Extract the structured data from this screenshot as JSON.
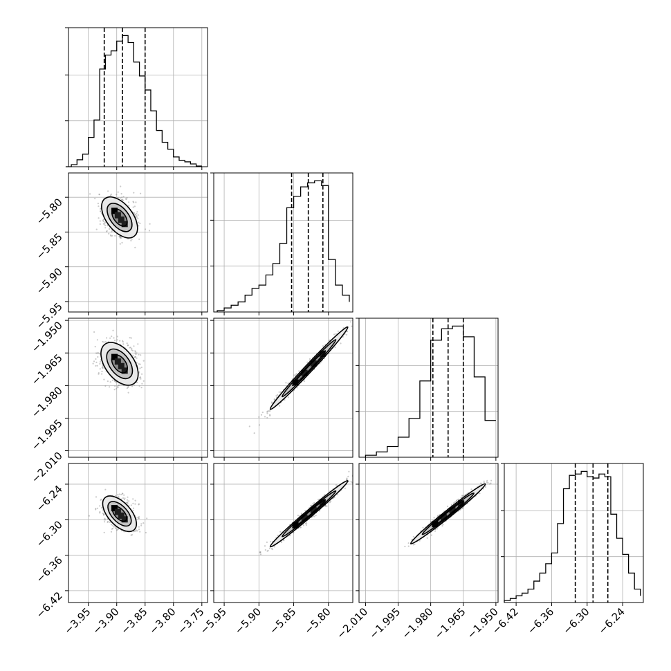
{
  "chart_data": {
    "type": "corner",
    "title": "",
    "parameters": [
      {
        "range": [
          -3.985,
          -3.74
        ],
        "ticks": [
          -3.95,
          -3.9,
          -3.85,
          -3.8,
          -3.75
        ],
        "tick_labels": [
          "−3.95",
          "−3.90",
          "−3.85",
          "−3.80",
          "−3.75"
        ],
        "quantiles": [
          -3.922,
          -3.89,
          -3.85
        ],
        "hist": {
          "bin_edges": [
            -3.99,
            -3.98,
            -3.97,
            -3.96,
            -3.95,
            -3.94,
            -3.93,
            -3.92,
            -3.91,
            -3.9,
            -3.89,
            -3.88,
            -3.87,
            -3.86,
            -3.85,
            -3.84,
            -3.83,
            -3.82,
            -3.81,
            -3.8,
            -3.79,
            -3.78,
            -3.77,
            -3.76,
            -3.75
          ],
          "counts": [
            0,
            3,
            10,
            18,
            42,
            67,
            140,
            160,
            166,
            180,
            188,
            178,
            150,
            130,
            110,
            80,
            52,
            35,
            25,
            14,
            9,
            7,
            4,
            1
          ]
        }
      },
      {
        "range": [
          -5.965,
          -5.765
        ],
        "ticks": [
          -5.95,
          -5.9,
          -5.85,
          -5.8
        ],
        "tick_labels": [
          "−5.95",
          "−5.90",
          "−5.85",
          "−5.80"
        ],
        "quantiles": [
          -5.853,
          -5.829,
          -5.808
        ],
        "hist": {
          "bin_edges": [
            -5.96,
            -5.95,
            -5.94,
            -5.93,
            -5.92,
            -5.91,
            -5.9,
            -5.89,
            -5.88,
            -5.87,
            -5.86,
            -5.85,
            -5.84,
            -5.83,
            -5.82,
            -5.81,
            -5.8,
            -5.79,
            -5.78,
            -5.77
          ],
          "counts": [
            2,
            6,
            10,
            15,
            25,
            35,
            40,
            55,
            72,
            102,
            155,
            172,
            186,
            192,
            195,
            188,
            78,
            40,
            25,
            15
          ]
        }
      },
      {
        "range": [
          -2.013,
          -1.949
        ],
        "ticks": [
          -2.01,
          -1.995,
          -1.98,
          -1.965,
          -1.95
        ],
        "tick_labels": [
          "−2.010",
          "−1.995",
          "−1.980",
          "−1.965",
          "−1.950"
        ],
        "quantiles": [
          -1.979,
          -1.972,
          -1.965
        ],
        "hist": {
          "bin_edges": [
            -2.01,
            -2.005,
            -2.0,
            -1.995,
            -1.99,
            -1.985,
            -1.98,
            -1.975,
            -1.97,
            -1.965,
            -1.96,
            -1.955,
            -1.95
          ],
          "counts": [
            3,
            8,
            16,
            30,
            58,
            114,
            175,
            192,
            196,
            180,
            120,
            55
          ]
        }
      },
      {
        "range": [
          -6.44,
          -6.205
        ],
        "ticks": [
          -6.42,
          -6.36,
          -6.3,
          -6.24
        ],
        "tick_labels": [
          "−6.42",
          "−6.36",
          "−6.30",
          "−6.24"
        ],
        "quantiles": [
          -6.32,
          -6.29,
          -6.265
        ],
        "hist": {
          "bin_edges": [
            -6.44,
            -6.43,
            -6.42,
            -6.41,
            -6.4,
            -6.39,
            -6.38,
            -6.37,
            -6.36,
            -6.35,
            -6.34,
            -6.33,
            -6.32,
            -6.31,
            -6.3,
            -6.29,
            -6.28,
            -6.27,
            -6.26,
            -6.25,
            -6.24,
            -6.23,
            -6.22,
            -6.21
          ],
          "counts": [
            3,
            6,
            10,
            14,
            20,
            32,
            44,
            58,
            74,
            118,
            170,
            190,
            192,
            196,
            188,
            186,
            192,
            188,
            132,
            96,
            72,
            44,
            20,
            10
          ]
        }
      }
    ],
    "pairs": [
      {
        "row": 1,
        "col": 0,
        "slope": -1.05,
        "center": [
          -3.895,
          -5.829
        ],
        "extent": 0.06,
        "contour_sigma": 0.008
      },
      {
        "row": 2,
        "col": 0,
        "slope": -0.35,
        "center": [
          -3.895,
          -1.97
        ],
        "extent": 0.06,
        "contour_sigma": 0.0028
      },
      {
        "row": 2,
        "col": 1,
        "slope": 0.34,
        "center": [
          -5.828,
          -1.972
        ],
        "extent": 0.13,
        "contour_sigma": 0.0006
      },
      {
        "row": 3,
        "col": 0,
        "slope": -1.05,
        "center": [
          -3.895,
          -6.29
        ],
        "extent": 0.06,
        "contour_sigma": 0.008
      },
      {
        "row": 3,
        "col": 1,
        "slope": 1.0,
        "center": [
          -5.828,
          -6.29
        ],
        "extent": 0.13,
        "contour_sigma": 0.002
      },
      {
        "row": 3,
        "col": 2,
        "slope": 2.94,
        "center": [
          -1.972,
          -6.29
        ],
        "extent": 0.04,
        "contour_sigma": 0.002
      }
    ],
    "grid": true
  }
}
